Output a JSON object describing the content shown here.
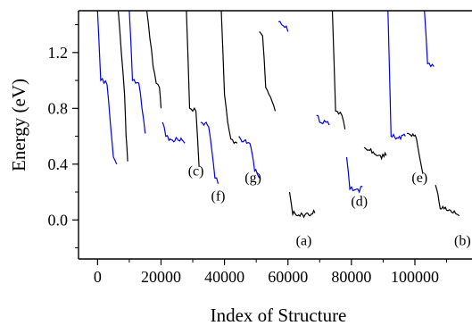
{
  "chart_data": {
    "type": "line",
    "title": "",
    "xlabel": "Index of Structure",
    "ylabel": "Energy (eV)",
    "xlim": [
      -6000,
      118000
    ],
    "ylim": [
      -0.28,
      1.5
    ],
    "x_ticks": [
      0,
      20000,
      40000,
      60000,
      80000,
      100000
    ],
    "x_tick_labels": [
      "0",
      "20000",
      "40000",
      "60000",
      "80000",
      "100000"
    ],
    "y_ticks": [
      0.0,
      0.4,
      0.8,
      1.2
    ],
    "y_tick_labels": [
      "0.0",
      "0.4",
      "0.8",
      "1.2"
    ],
    "grid": false,
    "legend": "none",
    "colors": {
      "black_series": "#000000",
      "blue_series": "#0000ee"
    },
    "series": [
      {
        "color": "blue",
        "x": [
          0,
          1000,
          2000,
          3000,
          4000,
          5000,
          6000
        ],
        "y": [
          1.5,
          1.0,
          0.98,
          0.97,
          0.7,
          0.45,
          0.4
        ]
      },
      {
        "color": "black",
        "x": [
          6500,
          7500,
          8500,
          9000,
          9500
        ],
        "y": [
          1.5,
          1.2,
          0.9,
          0.6,
          0.42
        ]
      },
      {
        "color": "blue",
        "x": [
          10000,
          11000,
          12000,
          13000,
          14000,
          15000
        ],
        "y": [
          1.5,
          1.0,
          0.98,
          0.98,
          0.8,
          0.62
        ]
      },
      {
        "color": "black",
        "x": [
          15500,
          16500,
          17500,
          18500,
          19500,
          20000
        ],
        "y": [
          1.5,
          1.3,
          1.1,
          0.98,
          0.95,
          0.8
        ]
      },
      {
        "color": "blue",
        "x": [
          20500,
          21500,
          22500,
          24000,
          25500,
          27500
        ],
        "y": [
          0.7,
          0.6,
          0.57,
          0.56,
          0.57,
          0.55
        ]
      },
      {
        "color": "black",
        "x": [
          28000,
          29000,
          30000,
          31000,
          32000
        ],
        "y": [
          1.5,
          0.8,
          0.78,
          0.78,
          0.38
        ]
      },
      {
        "color": "blue",
        "x": [
          32500,
          33500,
          35000,
          36000,
          37000,
          38000
        ],
        "y": [
          0.7,
          0.68,
          0.67,
          0.5,
          0.3,
          0.26
        ]
      },
      {
        "color": "black",
        "x": [
          39000,
          40000,
          41000,
          42000,
          43000,
          44000
        ],
        "y": [
          1.5,
          0.9,
          0.7,
          0.58,
          0.55,
          0.55
        ]
      },
      {
        "color": "blue",
        "x": [
          44500,
          45500,
          47000,
          48000,
          49500,
          51000
        ],
        "y": [
          0.6,
          0.56,
          0.55,
          0.55,
          0.35,
          0.3
        ]
      },
      {
        "color": "black",
        "x": [
          51000,
          52000,
          53000,
          54000,
          55000,
          56000
        ],
        "y": [
          1.35,
          1.32,
          0.95,
          0.9,
          0.85,
          0.78
        ]
      },
      {
        "color": "blue",
        "x": [
          57000,
          58000,
          59000,
          60000
        ],
        "y": [
          1.42,
          1.4,
          1.38,
          1.35
        ]
      },
      {
        "color": "black",
        "x": [
          60500,
          61500,
          63000,
          65000,
          67000,
          68500
        ],
        "y": [
          0.2,
          0.04,
          0.03,
          0.02,
          0.03,
          0.05
        ]
      },
      {
        "color": "blue",
        "x": [
          69000,
          70000,
          71000,
          72000,
          73000
        ],
        "y": [
          0.75,
          0.7,
          0.69,
          0.7,
          0.68
        ]
      },
      {
        "color": "black",
        "x": [
          74000,
          75000,
          76000,
          77000,
          78000
        ],
        "y": [
          1.5,
          0.78,
          0.76,
          0.75,
          0.65
        ]
      },
      {
        "color": "blue",
        "x": [
          78500,
          79500,
          80500,
          81500,
          82500,
          83500
        ],
        "y": [
          0.45,
          0.22,
          0.21,
          0.22,
          0.2,
          0.24
        ]
      },
      {
        "color": "black",
        "x": [
          84000,
          85000,
          86500,
          88000,
          89500,
          91000
        ],
        "y": [
          0.52,
          0.5,
          0.48,
          0.46,
          0.44,
          0.46
        ]
      },
      {
        "color": "blue",
        "x": [
          91500,
          92500,
          94000,
          95500,
          97000
        ],
        "y": [
          1.5,
          0.6,
          0.58,
          0.58,
          0.6
        ]
      },
      {
        "color": "black",
        "x": [
          97500,
          99000,
          100500,
          101500,
          102500
        ],
        "y": [
          0.62,
          0.6,
          0.58,
          0.45,
          0.33
        ]
      },
      {
        "color": "blue",
        "x": [
          103000,
          104000,
          105000,
          106000
        ],
        "y": [
          1.5,
          1.12,
          1.1,
          1.1
        ]
      },
      {
        "color": "black",
        "x": [
          106500,
          108000,
          110000,
          112000,
          114000
        ],
        "y": [
          0.25,
          0.08,
          0.07,
          0.05,
          0.03
        ]
      }
    ],
    "annotations": [
      {
        "label": "(a)",
        "x": 65000,
        "y": -0.18
      },
      {
        "label": "(b)",
        "x": 115000,
        "y": -0.18
      },
      {
        "label": "(c)",
        "x": 31000,
        "y": 0.32
      },
      {
        "label": "(d)",
        "x": 82500,
        "y": 0.1
      },
      {
        "label": "(e)",
        "x": 101500,
        "y": 0.27
      },
      {
        "label": "(f)",
        "x": 38000,
        "y": 0.14
      },
      {
        "label": "(g)",
        "x": 49000,
        "y": 0.27
      }
    ]
  }
}
